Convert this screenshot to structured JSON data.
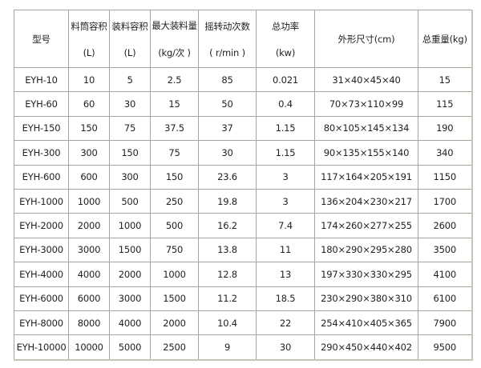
{
  "headers": [
    {
      "name": "型号",
      "unit": ""
    },
    {
      "name": "料筒容积",
      "unit": "(L)"
    },
    {
      "name": "装料容积",
      "unit": "(L)"
    },
    {
      "name": "最大装料量",
      "unit": "(kg/次 )"
    },
    {
      "name": "摇转动次数",
      "unit": "( r/min )"
    },
    {
      "name": "总功率",
      "unit": "(kw)"
    },
    {
      "name": "外形尺寸(cm)",
      "unit": ""
    },
    {
      "name": "总重量(kg)",
      "unit": ""
    }
  ],
  "rows": [
    [
      "EYH-10",
      "10",
      "5",
      "2.5",
      "85",
      "0.021",
      "31×40×45×40",
      "15"
    ],
    [
      "EYH-60",
      "60",
      "30",
      "15",
      "50",
      "0.4",
      "70×73×110×99",
      "115"
    ],
    [
      "EYH-150",
      "150",
      "75",
      "37.5",
      "37",
      "1.15",
      "80×105×145×134",
      "190"
    ],
    [
      "EYH-300",
      "300",
      "150",
      "75",
      "30",
      "1.15",
      "90×135×155×140",
      "340"
    ],
    [
      "EYH-600",
      "600",
      "300",
      "150",
      "23.6",
      "3",
      "117×164×205×191",
      "1150"
    ],
    [
      "EYH-1000",
      "1000",
      "500",
      "250",
      "19.8",
      "3",
      "136×204×230×217",
      "1700"
    ],
    [
      "EYH-2000",
      "2000",
      "1000",
      "500",
      "16.2",
      "7.4",
      "174×260×277×255",
      "2600"
    ],
    [
      "EYH-3000",
      "3000",
      "1500",
      "750",
      "13.8",
      "11",
      "180×290×295×280",
      "3500"
    ],
    [
      "EYH-4000",
      "4000",
      "2000",
      "1000",
      "12.8",
      "13",
      "197×330×330×295",
      "4100"
    ],
    [
      "EYH-6000",
      "6000",
      "3000",
      "1500",
      "11.2",
      "18.5",
      "230×290×380×310",
      "6100"
    ],
    [
      "EYH-8000",
      "8000",
      "4000",
      "2000",
      "10.4",
      "22",
      "254×410×405×365",
      "7900"
    ],
    [
      "EYH-10000",
      "10000",
      "5000",
      "2500",
      "9",
      "30",
      "290×450×440×402",
      "9500"
    ]
  ]
}
